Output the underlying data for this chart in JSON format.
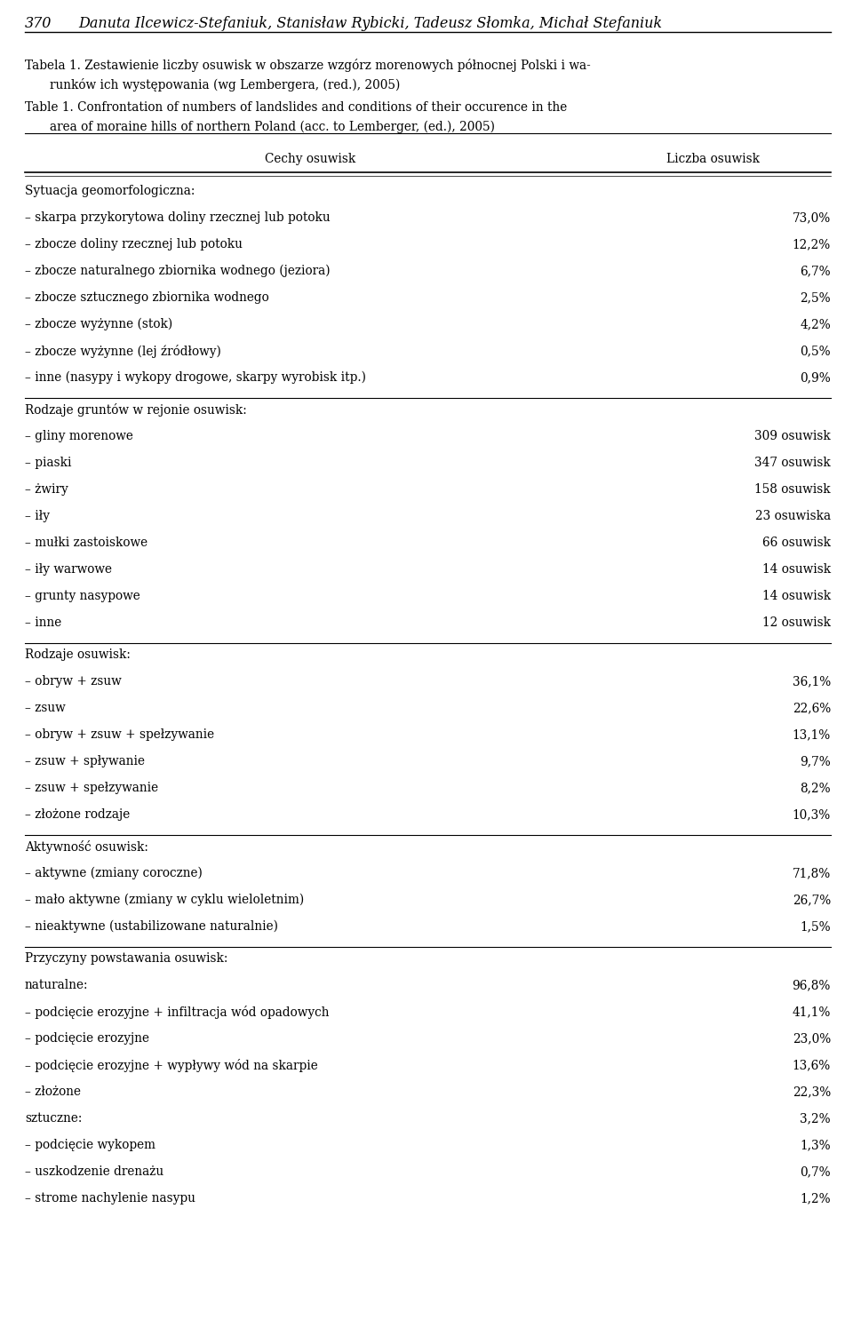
{
  "page_header_num": "370",
  "page_header_text": "Danuta Ilcewicz-Stefaniuk, Stanisław Rybicki, Tadeusz Słomka, Michał Stefaniuk",
  "title_pl_1": "Tabela 1. Zestawienie liczby osuwisk w obszarze wzgórz morenowych północnej Polski i wa-",
  "title_pl_2": "    runków ich występowania (wg Lembergera, (red.), 2005)",
  "title_en_1": "Table 1. Confrontation of numbers of landslides and conditions of their occurence in the",
  "title_en_2": "    area of moraine hills of northern Poland (acc. to Lemberger, (ed.), 2005)",
  "col1_header": "Cechy osuwisk",
  "col2_header": "Liczba osuwisk",
  "flat_rows": [
    {
      "type": "section",
      "left": "Sytuacja geomorfologiczna:",
      "right": ""
    },
    {
      "type": "row",
      "left": "– skarpa przykorytowa doliny rzecznej lub potoku",
      "right": "73,0%"
    },
    {
      "type": "row",
      "left": "– zbocze doliny rzecznej lub potoku",
      "right": "12,2%"
    },
    {
      "type": "row",
      "left": "– zbocze naturalnego zbiornika wodnego (jeziora)",
      "right": "6,7%"
    },
    {
      "type": "row",
      "left": "– zbocze sztucznego zbiornika wodnego",
      "right": "2,5%"
    },
    {
      "type": "row",
      "left": "– zbocze wyżynne (stok)",
      "right": "4,2%"
    },
    {
      "type": "row",
      "left": "– zbocze wyżynne (lej źródłowy)",
      "right": "0,5%"
    },
    {
      "type": "row",
      "left": "– inne (nasypy i wykopy drogowe, skarpy wyrobisk itp.)",
      "right": "0,9%"
    },
    {
      "type": "hline",
      "left": "",
      "right": ""
    },
    {
      "type": "section",
      "left": "Rodzaje gruntów w rejonie osuwisk:",
      "right": ""
    },
    {
      "type": "row",
      "left": "– gliny morenowe",
      "right": "309 osuwisk"
    },
    {
      "type": "row",
      "left": "– piaski",
      "right": "347 osuwisk"
    },
    {
      "type": "row",
      "left": "– żwiry",
      "right": "158 osuwisk"
    },
    {
      "type": "row",
      "left": "– iły",
      "right": "23 osuwiska"
    },
    {
      "type": "row",
      "left": "– mułki zastoiskowe",
      "right": "66 osuwisk"
    },
    {
      "type": "row",
      "left": "– iły warwowe",
      "right": "14 osuwisk"
    },
    {
      "type": "row",
      "left": "– grunty nasypowe",
      "right": "14 osuwisk"
    },
    {
      "type": "row",
      "left": "– inne",
      "right": "12 osuwisk"
    },
    {
      "type": "hline",
      "left": "",
      "right": ""
    },
    {
      "type": "section",
      "left": "Rodzaje osuwisk:",
      "right": ""
    },
    {
      "type": "row",
      "left": "– obryw + zsuw",
      "right": "36,1%"
    },
    {
      "type": "row",
      "left": "– zsuw",
      "right": "22,6%"
    },
    {
      "type": "row",
      "left": "– obryw + zsuw + spełzywanie",
      "right": "13,1%"
    },
    {
      "type": "row",
      "left": "– zsuw + spływanie",
      "right": "9,7%"
    },
    {
      "type": "row",
      "left": "– zsuw + spełzywanie",
      "right": "8,2%"
    },
    {
      "type": "row",
      "left": "– złożone rodzaje",
      "right": "10,3%"
    },
    {
      "type": "hline",
      "left": "",
      "right": ""
    },
    {
      "type": "section",
      "left": "Aktywność osuwisk:",
      "right": ""
    },
    {
      "type": "row",
      "left": "– aktywne (zmiany coroczne)",
      "right": "71,8%"
    },
    {
      "type": "row",
      "left": "– mało aktywne (zmiany w cyklu wieloletnim)",
      "right": "26,7%"
    },
    {
      "type": "row",
      "left": "– nieaktywne (ustabilizowane naturalnie)",
      "right": "1,5%"
    },
    {
      "type": "hline",
      "left": "",
      "right": ""
    },
    {
      "type": "section",
      "left": "Przyczyny powstawania osuwisk:",
      "right": ""
    },
    {
      "type": "row",
      "left": "naturalne:",
      "right": "96,8%"
    },
    {
      "type": "row",
      "left": "– podcięcie erozyjne + infiltracja wód opadowych",
      "right": "41,1%"
    },
    {
      "type": "row",
      "left": "– podcięcie erozyjne",
      "right": "23,0%"
    },
    {
      "type": "row",
      "left": "– podcięcie erozyjne + wypływy wód na skarpie",
      "right": "13,6%"
    },
    {
      "type": "row",
      "left": "– złożone",
      "right": "22,3%"
    },
    {
      "type": "row",
      "left": "sztuczne:",
      "right": "3,2%"
    },
    {
      "type": "row",
      "left": "– podcięcie wykopem",
      "right": "1,3%"
    },
    {
      "type": "row",
      "left": "– uszkodzenie drenażu",
      "right": "0,7%"
    },
    {
      "type": "row",
      "left": "– strome nachylenie nasypu",
      "right": "1,2%"
    }
  ]
}
